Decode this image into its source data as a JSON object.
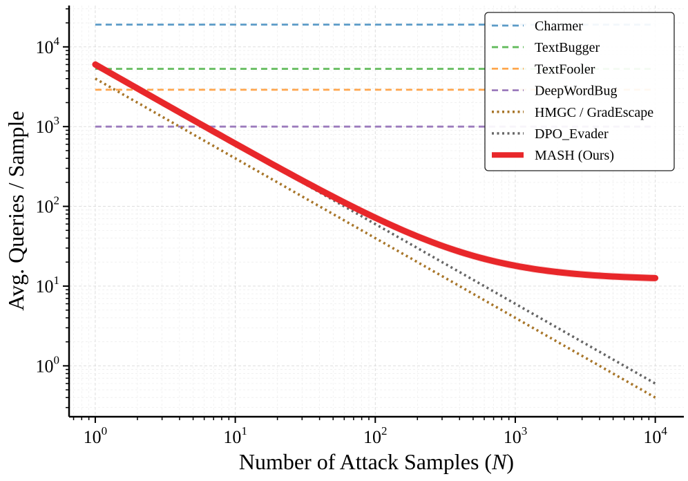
{
  "chart_data": {
    "type": "line",
    "xscale": "log",
    "yscale": "log",
    "xlabel_prefix": "Number of Attack Samples (",
    "xlabel_var": "N",
    "xlabel_suffix": ")",
    "ylabel": "Avg. Queries / Sample",
    "xlim": [
      0.65,
      16000
    ],
    "ylim": [
      0.23,
      33000
    ],
    "xticks": [
      {
        "base": "10",
        "exp": "0",
        "value": 1
      },
      {
        "base": "10",
        "exp": "1",
        "value": 10
      },
      {
        "base": "10",
        "exp": "2",
        "value": 100
      },
      {
        "base": "10",
        "exp": "3",
        "value": 1000
      },
      {
        "base": "10",
        "exp": "4",
        "value": 10000
      }
    ],
    "yticks": [
      {
        "base": "10",
        "exp": "0",
        "value": 1
      },
      {
        "base": "10",
        "exp": "1",
        "value": 10
      },
      {
        "base": "10",
        "exp": "2",
        "value": 100
      },
      {
        "base": "10",
        "exp": "3",
        "value": 1000
      },
      {
        "base": "10",
        "exp": "4",
        "value": 10000
      }
    ],
    "legend_position": "top-right",
    "series": [
      {
        "name": "Charmer",
        "kind": "constant",
        "value": 19000,
        "color": "#5b9bc7",
        "style": "dashed",
        "x": [
          1,
          10000
        ]
      },
      {
        "name": "TextBugger",
        "kind": "constant",
        "value": 5300,
        "color": "#62bb5c",
        "style": "dashed",
        "x": [
          1,
          10000
        ]
      },
      {
        "name": "TextFooler",
        "kind": "constant",
        "value": 2900,
        "color": "#ffa64d",
        "style": "dashed",
        "x": [
          1,
          10000
        ]
      },
      {
        "name": "DeepWordBug",
        "kind": "constant",
        "value": 1000,
        "color": "#9c7bbd",
        "style": "dashed",
        "x": [
          1,
          10000
        ]
      },
      {
        "name": "HMGC / GradEscape",
        "kind": "power",
        "a": 4000,
        "b": -1,
        "color": "#a8762a",
        "style": "dotted",
        "x": [
          1,
          10000
        ]
      },
      {
        "name": "DPO_Evader",
        "kind": "power",
        "a": 6000,
        "b": -1,
        "color": "#666666",
        "style": "dotted",
        "x": [
          30,
          10000
        ]
      },
      {
        "name": "MASH (Ours)",
        "kind": "power_plus_const",
        "a": 6000,
        "b": -1,
        "c": 12,
        "color": "#e8272a",
        "style": "solid",
        "x": [
          1,
          10000
        ]
      }
    ]
  }
}
